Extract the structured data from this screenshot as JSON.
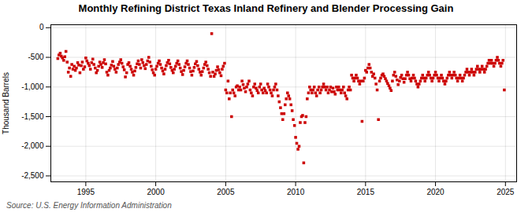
{
  "chart_data": {
    "type": "scatter",
    "title": "Monthly Refining District Texas Inland Refinery and Blender Processing Gain",
    "ylabel": "Thousand Barrels",
    "source": "Source: U.S. Energy Information Administration",
    "color": "#CC0000",
    "marker": "square",
    "grid": true,
    "xlim": [
      1992.5,
      2025.8
    ],
    "xticks": [
      1995,
      2000,
      2005,
      2010,
      2015,
      2020,
      2025
    ],
    "ylim": [
      -2600,
      50
    ],
    "yticks": [
      0,
      -500,
      {
        "value": -1000,
        "label": "-1,000"
      },
      {
        "value": -1500,
        "label": "-1,500"
      },
      {
        "value": -2000,
        "label": "-2,000"
      },
      {
        "value": -2500,
        "label": "-2,500"
      }
    ],
    "x": [
      1993.0,
      1993.08,
      1993.17,
      1993.25,
      1993.33,
      1993.42,
      1993.5,
      1993.58,
      1993.67,
      1993.75,
      1993.83,
      1993.92,
      1994.0,
      1994.08,
      1994.17,
      1994.25,
      1994.33,
      1994.42,
      1994.5,
      1994.58,
      1994.67,
      1994.75,
      1994.83,
      1994.92,
      1995.0,
      1995.08,
      1995.17,
      1995.25,
      1995.33,
      1995.42,
      1995.5,
      1995.58,
      1995.67,
      1995.75,
      1995.83,
      1995.92,
      1996.0,
      1996.08,
      1996.17,
      1996.25,
      1996.33,
      1996.42,
      1996.5,
      1996.58,
      1996.67,
      1996.75,
      1996.83,
      1996.92,
      1997.0,
      1997.08,
      1997.17,
      1997.25,
      1997.33,
      1997.42,
      1997.5,
      1997.58,
      1997.67,
      1997.75,
      1997.83,
      1997.92,
      1998.0,
      1998.08,
      1998.17,
      1998.25,
      1998.33,
      1998.42,
      1998.5,
      1998.58,
      1998.67,
      1998.75,
      1998.83,
      1998.92,
      1999.0,
      1999.08,
      1999.17,
      1999.25,
      1999.33,
      1999.42,
      1999.5,
      1999.58,
      1999.67,
      1999.75,
      1999.83,
      1999.92,
      2000.0,
      2000.08,
      2000.17,
      2000.25,
      2000.33,
      2000.42,
      2000.5,
      2000.58,
      2000.67,
      2000.75,
      2000.83,
      2000.92,
      2001.0,
      2001.08,
      2001.17,
      2001.25,
      2001.33,
      2001.42,
      2001.5,
      2001.58,
      2001.67,
      2001.75,
      2001.83,
      2001.92,
      2002.0,
      2002.08,
      2002.17,
      2002.25,
      2002.33,
      2002.42,
      2002.5,
      2002.58,
      2002.67,
      2002.75,
      2002.83,
      2002.92,
      2003.0,
      2003.08,
      2003.17,
      2003.25,
      2003.33,
      2003.42,
      2003.5,
      2003.58,
      2003.67,
      2003.75,
      2003.83,
      2003.92,
      2004.0,
      2004.08,
      2004.17,
      2004.25,
      2004.33,
      2004.42,
      2004.5,
      2004.58,
      2004.67,
      2004.75,
      2004.83,
      2004.92,
      2005.0,
      2005.08,
      2005.17,
      2005.25,
      2005.33,
      2005.42,
      2005.5,
      2005.58,
      2005.67,
      2005.75,
      2005.83,
      2005.92,
      2006.0,
      2006.08,
      2006.17,
      2006.25,
      2006.33,
      2006.42,
      2006.5,
      2006.58,
      2006.67,
      2006.75,
      2006.83,
      2006.92,
      2007.0,
      2007.08,
      2007.17,
      2007.25,
      2007.33,
      2007.42,
      2007.5,
      2007.58,
      2007.67,
      2007.75,
      2007.83,
      2007.92,
      2008.0,
      2008.08,
      2008.17,
      2008.25,
      2008.33,
      2008.42,
      2008.5,
      2008.58,
      2008.67,
      2008.75,
      2008.83,
      2008.92,
      2009.0,
      2009.08,
      2009.17,
      2009.25,
      2009.33,
      2009.42,
      2009.5,
      2009.58,
      2009.67,
      2009.75,
      2009.83,
      2009.92,
      2010.0,
      2010.08,
      2010.17,
      2010.25,
      2010.33,
      2010.42,
      2010.5,
      2010.58,
      2010.67,
      2010.75,
      2010.83,
      2010.92,
      2011.0,
      2011.08,
      2011.17,
      2011.25,
      2011.33,
      2011.42,
      2011.5,
      2011.58,
      2011.67,
      2011.75,
      2011.83,
      2011.92,
      2012.0,
      2012.08,
      2012.17,
      2012.25,
      2012.33,
      2012.42,
      2012.5,
      2012.58,
      2012.67,
      2012.75,
      2012.83,
      2012.92,
      2013.0,
      2013.08,
      2013.17,
      2013.25,
      2013.33,
      2013.42,
      2013.5,
      2013.58,
      2013.67,
      2013.75,
      2013.83,
      2013.92,
      2014.0,
      2014.08,
      2014.17,
      2014.25,
      2014.33,
      2014.42,
      2014.5,
      2014.58,
      2014.67,
      2014.75,
      2014.83,
      2014.92,
      2015.0,
      2015.08,
      2015.17,
      2015.25,
      2015.33,
      2015.42,
      2015.5,
      2015.58,
      2015.67,
      2015.75,
      2015.83,
      2015.92,
      2016.0,
      2016.08,
      2016.17,
      2016.25,
      2016.33,
      2016.42,
      2016.5,
      2016.58,
      2016.67,
      2016.75,
      2016.83,
      2016.92,
      2017.0,
      2017.08,
      2017.17,
      2017.25,
      2017.33,
      2017.42,
      2017.5,
      2017.58,
      2017.67,
      2017.75,
      2017.83,
      2017.92,
      2018.0,
      2018.08,
      2018.17,
      2018.25,
      2018.33,
      2018.42,
      2018.5,
      2018.58,
      2018.67,
      2018.75,
      2018.83,
      2018.92,
      2019.0,
      2019.08,
      2019.17,
      2019.25,
      2019.33,
      2019.42,
      2019.5,
      2019.58,
      2019.67,
      2019.75,
      2019.83,
      2019.92,
      2020.0,
      2020.08,
      2020.17,
      2020.25,
      2020.33,
      2020.42,
      2020.5,
      2020.58,
      2020.67,
      2020.75,
      2020.83,
      2020.92,
      2021.0,
      2021.08,
      2021.17,
      2021.25,
      2021.33,
      2021.42,
      2021.5,
      2021.58,
      2021.67,
      2021.75,
      2021.83,
      2021.92,
      2022.0,
      2022.08,
      2022.17,
      2022.25,
      2022.33,
      2022.42,
      2022.5,
      2022.58,
      2022.67,
      2022.75,
      2022.83,
      2022.92,
      2023.0,
      2023.08,
      2023.17,
      2023.25,
      2023.33,
      2023.42,
      2023.5,
      2023.58,
      2023.67,
      2023.75,
      2023.83,
      2023.92,
      2024.0,
      2024.08,
      2024.17,
      2024.25,
      2024.33,
      2024.42,
      2024.5,
      2024.58,
      2024.67,
      2024.75,
      2024.83,
      2024.92
    ],
    "values": [
      -520,
      -460,
      -430,
      -480,
      -510,
      -550,
      -490,
      -400,
      -580,
      -750,
      -680,
      -820,
      -620,
      -700,
      -650,
      -720,
      -680,
      -590,
      -630,
      -760,
      -640,
      -580,
      -700,
      -660,
      -510,
      -560,
      -600,
      -640,
      -700,
      -590,
      -530,
      -620,
      -680,
      -760,
      -720,
      -650,
      -580,
      -620,
      -670,
      -590,
      -540,
      -610,
      -750,
      -800,
      -720,
      -680,
      -630,
      -570,
      -650,
      -700,
      -750,
      -680,
      -620,
      -580,
      -540,
      -600,
      -660,
      -710,
      -830,
      -760,
      -620,
      -590,
      -650,
      -700,
      -750,
      -800,
      -730,
      -670,
      -610,
      -560,
      -620,
      -680,
      -540,
      -590,
      -640,
      -690,
      -620,
      -560,
      -500,
      -580,
      -650,
      -710,
      -760,
      -800,
      -700,
      -650,
      -600,
      -560,
      -620,
      -680,
      -730,
      -780,
      -700,
      -640,
      -590,
      -550,
      -610,
      -670,
      -720,
      -760,
      -700,
      -650,
      -600,
      -560,
      -620,
      -680,
      -740,
      -790,
      -720,
      -660,
      -600,
      -560,
      -620,
      -680,
      -740,
      -800,
      -730,
      -670,
      -610,
      -570,
      -640,
      -700,
      -750,
      -800,
      -740,
      -680,
      -620,
      -580,
      -640,
      -700,
      -760,
      -820,
      -100,
      -750,
      -820,
      -780,
      -720,
      -660,
      -710,
      -760,
      -810,
      -700,
      -650,
      -600,
      -1050,
      -1100,
      -900,
      -1200,
      -1100,
      -1500,
      -1050,
      -1100,
      -1150,
      -1000,
      -980,
      -1050,
      -1000,
      -1050,
      -900,
      -960,
      -1020,
      -1080,
      -1000,
      -950,
      -900,
      -1050,
      -1100,
      -1150,
      -1000,
      -950,
      -1020,
      -1060,
      -1100,
      -1000,
      -950,
      -1050,
      -1100,
      -1020,
      -1060,
      -1100,
      -950,
      -1000,
      -1050,
      -1100,
      -1150,
      -1050,
      -1000,
      -950,
      -1050,
      -1150,
      -1250,
      -1350,
      -1450,
      -1550,
      -1450,
      -1300,
      -1200,
      -1100,
      -1150,
      -1200,
      -1300,
      -1400,
      -1550,
      -1650,
      -1850,
      -1950,
      -2050,
      -2000,
      -1600,
      -1500,
      -1480,
      -2280,
      -1600,
      -1500,
      -1200,
      -1100,
      -1000,
      -1050,
      -1100,
      -1050,
      -1000,
      -1100,
      -1150,
      -1050,
      -1000,
      -1100,
      -1050,
      -1000,
      -950,
      -1000,
      -1050,
      -1000,
      -1100,
      -1050,
      -1000,
      -1080,
      -1020,
      -1080,
      -1120,
      -1000,
      -1050,
      -1000,
      -1050,
      -1100,
      -1050,
      -1000,
      -1100,
      -1150,
      -1200,
      -1050,
      -1000,
      -1050,
      -800,
      -850,
      -900,
      -850,
      -800,
      -850,
      -900,
      -950,
      -900,
      -1580,
      -900,
      -850,
      -720,
      -750,
      -680,
      -620,
      -680,
      -750,
      -820,
      -780,
      -850,
      -950,
      -1050,
      -1550,
      -900,
      -850,
      -800,
      -780,
      -820,
      -860,
      -900,
      -940,
      -980,
      -1020,
      -1060,
      -900,
      -800,
      -750,
      -820,
      -880,
      -960,
      -900,
      -840,
      -800,
      -860,
      -920,
      -860,
      -800,
      -750,
      -800,
      -860,
      -900,
      -850,
      -800,
      -850,
      -900,
      -950,
      -1000,
      -950,
      -900,
      -850,
      -800,
      -850,
      -900,
      -850,
      -800,
      -750,
      -800,
      -850,
      -900,
      -850,
      -800,
      -750,
      -800,
      -850,
      -900,
      -850,
      -800,
      -850,
      -900,
      -950,
      -900,
      -850,
      -800,
      -750,
      -800,
      -850,
      -800,
      -750,
      -800,
      -850,
      -900,
      -850,
      -800,
      -850,
      -900,
      -850,
      -800,
      -750,
      -700,
      -750,
      -800,
      -750,
      -700,
      -750,
      -800,
      -750,
      -700,
      -650,
      -700,
      -750,
      -700,
      -650,
      -700,
      -750,
      -700,
      -650,
      -600,
      -550,
      -600,
      -550,
      -600,
      -650,
      -600,
      -550,
      -500,
      -550,
      -600,
      -650,
      -600,
      -550,
      -1050
    ]
  }
}
